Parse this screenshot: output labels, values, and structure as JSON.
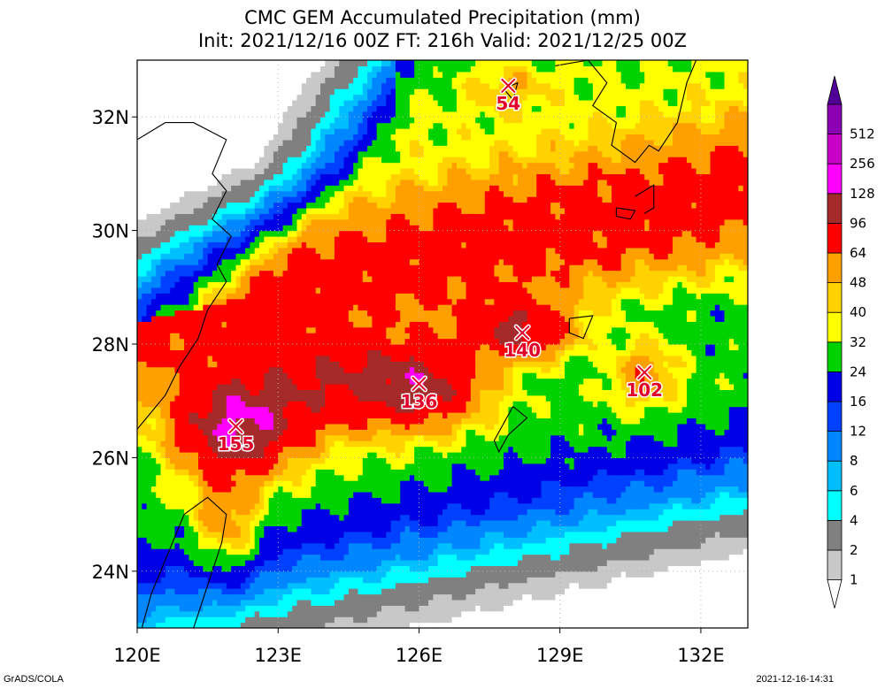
{
  "header": {
    "title": "CMC GEM Accumulated Precipitation (mm)",
    "subtitle": "Init: 2021/12/16 00Z  FT: 216h  Valid: 2021/12/25 00Z"
  },
  "footer": {
    "left": "GrADS/COLA",
    "right": "2021-12-16-14:31"
  },
  "chart_data": {
    "type": "heatmap",
    "title": "CMC GEM Accumulated Precipitation (mm)",
    "subtitle": "Init: 2021/12/16 00Z  FT: 216h  Valid: 2021/12/25 00Z",
    "xlim": [
      120,
      133
    ],
    "ylim": [
      23,
      33
    ],
    "x_ticks": [
      120,
      123,
      126,
      129,
      132
    ],
    "x_tick_labels": [
      "120E",
      "123E",
      "126E",
      "129E",
      "132E"
    ],
    "y_ticks": [
      24,
      26,
      28,
      30,
      32
    ],
    "y_tick_labels": [
      "24N",
      "26N",
      "28N",
      "30N",
      "32N"
    ],
    "grid": true,
    "colorbar": {
      "placement": "right",
      "levels": [
        "1",
        "2",
        "4",
        "6",
        "8",
        "12",
        "16",
        "24",
        "32",
        "40",
        "48",
        "64",
        "96",
        "128",
        "256",
        "512"
      ],
      "colors": [
        "#ffffff",
        "#c8c8c8",
        "#808080",
        "#00ffff",
        "#00bfff",
        "#0087ff",
        "#0040ff",
        "#0000e6",
        "#00d200",
        "#ffff00",
        "#ffd200",
        "#ffa000",
        "#ff0000",
        "#a52a2a",
        "#ff00ff",
        "#c800c8",
        "#8c00b4",
        "#500096"
      ]
    },
    "maxima": [
      {
        "lon": 122.1,
        "lat": 26.55,
        "label": "155"
      },
      {
        "lon": 126.0,
        "lat": 27.3,
        "label": "136"
      },
      {
        "lon": 128.2,
        "lat": 28.2,
        "label": "140"
      },
      {
        "lon": 130.8,
        "lat": 27.5,
        "label": "102"
      },
      {
        "lon": 127.9,
        "lat": 32.55,
        "label": "54"
      }
    ]
  }
}
